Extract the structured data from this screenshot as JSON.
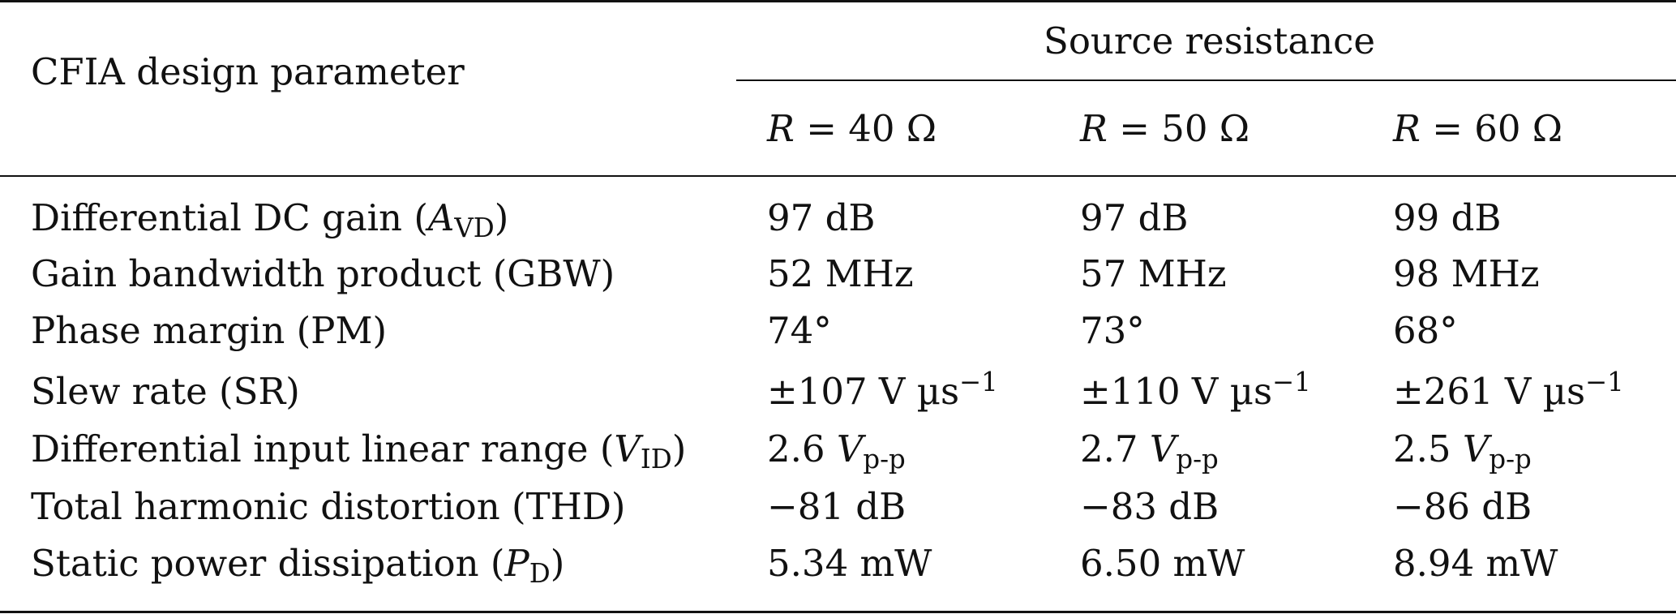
{
  "table": {
    "header": {
      "param_label": "CFIA design parameter",
      "group_label": "Source resistance",
      "columns": [
        {
          "var": "R",
          "eq": " = 40 Ω"
        },
        {
          "var": "R",
          "eq": " = 50 Ω"
        },
        {
          "var": "R",
          "eq": " = 60 Ω"
        }
      ]
    },
    "rows": [
      {
        "param": {
          "text": "Differential DC gain (",
          "sym": "A",
          "sub": "VD",
          "close": ")"
        },
        "values": [
          "97 dB",
          "97 dB",
          "99 dB"
        ]
      },
      {
        "param": {
          "text": "Gain bandwidth product (GBW)"
        },
        "values": [
          "52 MHz",
          "57 MHz",
          "98 MHz"
        ]
      },
      {
        "param": {
          "text": "Phase margin (PM)"
        },
        "values": [
          "74°",
          "73°",
          "68°"
        ]
      },
      {
        "param": {
          "text": "Slew rate (SR)"
        },
        "values": [
          {
            "base": "±107 V µs",
            "sup": "−1"
          },
          {
            "base": "±110 V µs",
            "sup": "−1"
          },
          {
            "base": "±261 V µs",
            "sup": "−1"
          }
        ]
      },
      {
        "param": {
          "text": "Differential input linear range (",
          "sym": "V",
          "sub": "ID",
          "close": ")"
        },
        "values": [
          {
            "num": "2.6 ",
            "sym": "V",
            "sub": "p-p"
          },
          {
            "num": "2.7 ",
            "sym": "V",
            "sub": "p-p"
          },
          {
            "num": "2.5 ",
            "sym": "V",
            "sub": "p-p"
          }
        ]
      },
      {
        "param": {
          "text": "Total harmonic distortion (THD)"
        },
        "values": [
          "−81 dB",
          "−83 dB",
          "−86 dB"
        ]
      },
      {
        "param": {
          "text": "Static power dissipation (",
          "sym": "P",
          "sub": "D",
          "close": ")"
        },
        "values": [
          "5.34 mW",
          "6.50 mW",
          "8.94 mW"
        ]
      }
    ]
  }
}
